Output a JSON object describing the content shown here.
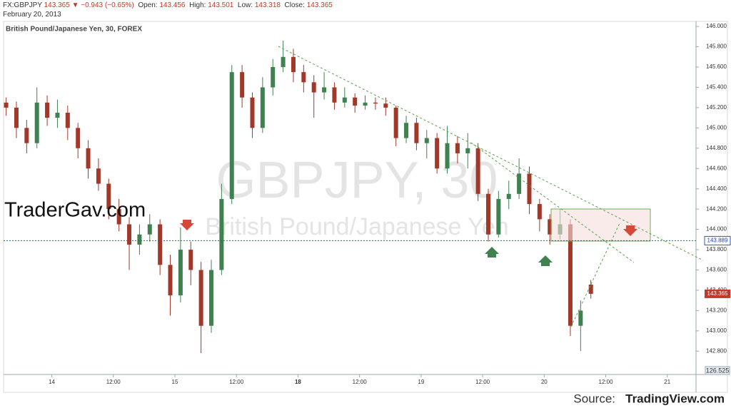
{
  "chart_data": {
    "type": "candlestick",
    "header": {
      "symbol": "FX:GBPJPY",
      "last": "143.365",
      "arrow": "▼",
      "change": "−0.943 (−0.65%)",
      "open_label": "Open:",
      "open": "143.456",
      "high_label": "High:",
      "high": "143.501",
      "low_label": "Low:",
      "low": "143.318",
      "close_label": "Close:",
      "close": "143.365",
      "date": "February 20, 2013"
    },
    "title": "British Pound/Japanese Yen, 30, FOREX",
    "watermark": "GBPJPY, 30",
    "watermark_sub": "British Pound/Japanese Yen",
    "brand": "TraderGav.com",
    "source_prefix": "Source:",
    "source": "TradingView.com",
    "up_color": "#3f8150",
    "down_color": "#a2382a",
    "x": [
      0.5,
      2.5,
      4.5,
      6.5,
      8.5,
      10.5,
      12.5,
      14.5,
      16.5,
      18.5,
      20.5,
      22.5,
      24.5,
      26.5,
      28.5,
      30.5,
      32.5,
      34.5,
      36.5,
      38.5,
      40.5,
      42.5,
      44.5,
      46.5,
      48.5,
      50.5,
      52.5,
      54.5,
      56.5,
      58.5,
      60.5,
      62.5,
      64.5,
      66.5,
      68.5,
      70.5,
      72.5,
      74.5,
      76.5,
      78.5,
      80.5,
      82.5,
      84.5,
      86.5,
      88.5,
      90.5,
      92.5,
      94.5,
      96.5,
      98.5,
      100.5,
      102.5,
      104.5,
      106.5,
      108.5,
      110.5,
      112.5,
      114.5
    ],
    "open": [
      145.25,
      145.2,
      145.0,
      144.85,
      145.25,
      145.1,
      145.15,
      145.0,
      144.8,
      144.6,
      144.45,
      144.2,
      144.05,
      143.85,
      143.95,
      144.05,
      143.65,
      143.35,
      143.8,
      143.6,
      143.05,
      143.6,
      144.3,
      145.55,
      145.3,
      145.0,
      145.4,
      145.6,
      145.7,
      145.55,
      145.45,
      145.35,
      145.4,
      145.25,
      145.3,
      145.22,
      145.25,
      145.24,
      145.2,
      144.9,
      145.05,
      144.85,
      144.9,
      144.6,
      144.85,
      144.75,
      144.8,
      144.35,
      143.95,
      144.3,
      144.35,
      144.55,
      144.25,
      144.1,
      143.95,
      144.05,
      143.05,
      143.456
    ],
    "high": [
      145.3,
      145.26,
      145.08,
      145.4,
      145.32,
      145.28,
      145.22,
      145.05,
      144.88,
      144.7,
      144.5,
      144.3,
      144.12,
      144.05,
      144.15,
      144.1,
      143.75,
      144.02,
      143.88,
      143.68,
      143.7,
      144.45,
      145.62,
      145.62,
      145.35,
      145.5,
      145.68,
      145.86,
      145.78,
      145.62,
      145.52,
      145.55,
      145.45,
      145.4,
      145.34,
      145.32,
      145.3,
      145.3,
      145.22,
      145.12,
      145.1,
      144.98,
      144.95,
      145.02,
      144.92,
      144.95,
      144.85,
      144.4,
      144.38,
      144.48,
      144.7,
      144.62,
      144.3,
      144.15,
      144.2,
      144.1,
      143.3,
      143.501
    ],
    "low": [
      145.12,
      144.9,
      144.75,
      144.8,
      145.02,
      145.0,
      144.88,
      144.7,
      144.5,
      144.38,
      144.1,
      143.98,
      143.6,
      143.75,
      143.88,
      143.55,
      143.15,
      143.28,
      143.45,
      142.78,
      142.98,
      143.55,
      144.25,
      145.2,
      144.9,
      144.95,
      145.32,
      145.55,
      145.45,
      145.35,
      145.1,
      145.28,
      145.18,
      145.2,
      145.15,
      145.18,
      145.18,
      145.12,
      144.82,
      144.85,
      144.78,
      144.7,
      144.55,
      144.55,
      144.65,
      144.6,
      144.28,
      143.88,
      143.92,
      144.2,
      144.3,
      144.15,
      143.98,
      143.85,
      143.9,
      142.95,
      142.8,
      143.318
    ],
    "close": [
      145.2,
      145.0,
      144.85,
      145.25,
      145.1,
      145.15,
      145.0,
      144.8,
      144.6,
      144.45,
      144.2,
      144.05,
      143.85,
      143.95,
      144.05,
      143.65,
      143.35,
      143.8,
      143.6,
      143.05,
      143.6,
      144.3,
      145.55,
      145.3,
      145.0,
      145.4,
      145.6,
      145.7,
      145.55,
      145.45,
      145.35,
      145.4,
      145.25,
      145.3,
      145.22,
      145.25,
      145.24,
      145.2,
      144.9,
      145.05,
      144.85,
      144.9,
      144.6,
      144.85,
      144.75,
      144.8,
      144.35,
      143.95,
      144.3,
      144.35,
      144.55,
      144.25,
      144.1,
      143.95,
      144.05,
      143.05,
      143.2,
      143.365
    ],
    "xlim": [
      0,
      135
    ],
    "xticks": [
      {
        "value": 9.4,
        "label": "14"
      },
      {
        "value": 21.4,
        "label": "12:00"
      },
      {
        "value": 33.4,
        "label": "15"
      },
      {
        "value": 45.4,
        "label": "12:00"
      },
      {
        "value": 57.4,
        "label": "18"
      },
      {
        "value": 69.4,
        "label": "12:00"
      },
      {
        "value": 81.4,
        "label": "19"
      },
      {
        "value": 93.4,
        "label": "12:00"
      },
      {
        "value": 105.4,
        "label": "20"
      },
      {
        "value": 117.4,
        "label": "12:00"
      },
      {
        "value": 129.4,
        "label": "21"
      }
    ],
    "ylim": [
      142.57,
      146.05
    ],
    "yticks": [
      {
        "value": 142.8,
        "label": "142.800"
      },
      {
        "value": 143.0,
        "label": "143.000"
      },
      {
        "value": 143.2,
        "label": "143.200"
      },
      {
        "value": 143.4,
        "label": "143.400"
      },
      {
        "value": 143.6,
        "label": "143.600"
      },
      {
        "value": 143.8,
        "label": "143.800"
      },
      {
        "value": 144.0,
        "label": "144.000"
      },
      {
        "value": 144.2,
        "label": "144.200"
      },
      {
        "value": 144.4,
        "label": "144.400"
      },
      {
        "value": 144.6,
        "label": "144.600"
      },
      {
        "value": 144.8,
        "label": "144.800"
      },
      {
        "value": 145.0,
        "label": "145.000"
      },
      {
        "value": 145.2,
        "label": "145.200"
      },
      {
        "value": 145.4,
        "label": "145.400"
      },
      {
        "value": 145.6,
        "label": "145.600"
      },
      {
        "value": 145.8,
        "label": "145.800"
      },
      {
        "value": 146.0,
        "label": "146.000"
      }
    ],
    "hline": 143.889,
    "last_label": "143.365",
    "bottom_label": "126.525"
  }
}
